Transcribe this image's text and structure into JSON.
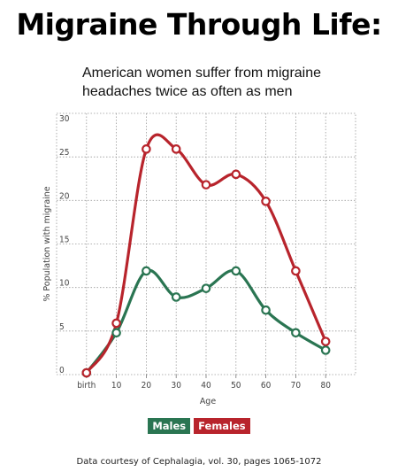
{
  "colors": {
    "males": "#2a7552",
    "females": "#b8242c",
    "grid": "#9a9a9a",
    "axis": "#777777"
  },
  "footnote": "Data courtesy of Cephalagia, vol. 30, pages 1065-1072",
  "chart_data": {
    "type": "line",
    "title": "Migraine Through Life:",
    "subtitle": "American women suffer from migraine headaches twice as often as men",
    "xlabel": "Age",
    "ylabel": "% Population with migraine",
    "x": [
      0,
      10,
      20,
      30,
      40,
      50,
      60,
      70,
      80
    ],
    "x_tick_labels": [
      "birth",
      "10",
      "20",
      "30",
      "40",
      "50",
      "60",
      "70",
      "80"
    ],
    "xlim": [
      -10,
      90
    ],
    "ylim": [
      0,
      30
    ],
    "y_ticks": [
      0,
      5,
      10,
      15,
      20,
      25,
      30
    ],
    "grid": true,
    "legend_position": "bottom-center",
    "series": [
      {
        "name": "Males",
        "values": [
          0.2,
          4.8,
          11.9,
          8.9,
          9.9,
          11.9,
          7.4,
          4.8,
          2.8
        ]
      },
      {
        "name": "Females",
        "values": [
          0.2,
          5.9,
          25.9,
          25.9,
          21.8,
          23.0,
          19.9,
          11.9,
          3.8
        ]
      }
    ]
  }
}
